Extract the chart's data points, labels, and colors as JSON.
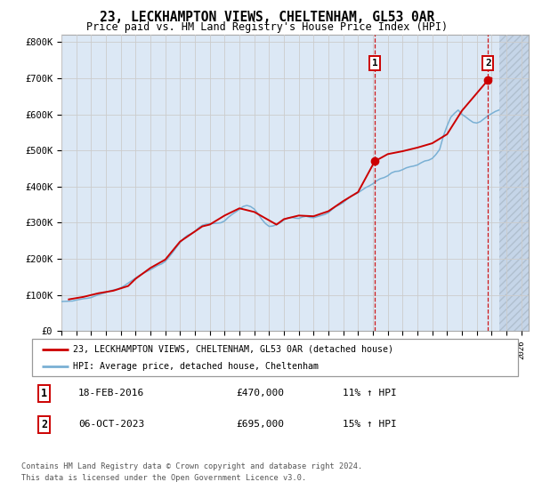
{
  "title": "23, LECKHAMPTON VIEWS, CHELTENHAM, GL53 0AR",
  "subtitle": "Price paid vs. HM Land Registry's House Price Index (HPI)",
  "ylabel_ticks": [
    "£0",
    "£100K",
    "£200K",
    "£300K",
    "£400K",
    "£500K",
    "£600K",
    "£700K",
    "£800K"
  ],
  "ytick_values": [
    0,
    100000,
    200000,
    300000,
    400000,
    500000,
    600000,
    700000,
    800000
  ],
  "ylim": [
    0,
    820000
  ],
  "xlim_start": 1995.0,
  "xlim_end": 2026.5,
  "xticks": [
    1995,
    1996,
    1997,
    1998,
    1999,
    2000,
    2001,
    2002,
    2003,
    2004,
    2005,
    2006,
    2007,
    2008,
    2009,
    2010,
    2011,
    2012,
    2013,
    2014,
    2015,
    2016,
    2017,
    2018,
    2019,
    2020,
    2021,
    2022,
    2023,
    2024,
    2025,
    2026
  ],
  "grid_color": "#cccccc",
  "background_color": "#dce8f5",
  "hatch_region_color": "#c5d5e8",
  "red_line_color": "#cc0000",
  "blue_line_color": "#7ab0d4",
  "dashed_line_color": "#cc0000",
  "legend_label_red": "23, LECKHAMPTON VIEWS, CHELTENHAM, GL53 0AR (detached house)",
  "legend_label_blue": "HPI: Average price, detached house, Cheltenham",
  "marker1_x": 2016.12,
  "marker1_y": 470000,
  "marker1_label": "1",
  "marker1_date": "18-FEB-2016",
  "marker1_price": "£470,000",
  "marker1_hpi": "11% ↑ HPI",
  "marker2_x": 2023.76,
  "marker2_y": 695000,
  "marker2_label": "2",
  "marker2_date": "06-OCT-2023",
  "marker2_price": "£695,000",
  "marker2_hpi": "15% ↑ HPI",
  "footer1": "Contains HM Land Registry data © Crown copyright and database right 2024.",
  "footer2": "This data is licensed under the Open Government Licence v3.0.",
  "hpi_years": [
    1995.0,
    1995.25,
    1995.5,
    1995.75,
    1996.0,
    1996.25,
    1996.5,
    1996.75,
    1997.0,
    1997.25,
    1997.5,
    1997.75,
    1998.0,
    1998.25,
    1998.5,
    1998.75,
    1999.0,
    1999.25,
    1999.5,
    1999.75,
    2000.0,
    2000.25,
    2000.5,
    2000.75,
    2001.0,
    2001.25,
    2001.5,
    2001.75,
    2002.0,
    2002.25,
    2002.5,
    2002.75,
    2003.0,
    2003.25,
    2003.5,
    2003.75,
    2004.0,
    2004.25,
    2004.5,
    2004.75,
    2005.0,
    2005.25,
    2005.5,
    2005.75,
    2006.0,
    2006.25,
    2006.5,
    2006.75,
    2007.0,
    2007.25,
    2007.5,
    2007.75,
    2008.0,
    2008.25,
    2008.5,
    2008.75,
    2009.0,
    2009.25,
    2009.5,
    2009.75,
    2010.0,
    2010.25,
    2010.5,
    2010.75,
    2011.0,
    2011.25,
    2011.5,
    2011.75,
    2012.0,
    2012.25,
    2012.5,
    2012.75,
    2013.0,
    2013.25,
    2013.5,
    2013.75,
    2014.0,
    2014.25,
    2014.5,
    2014.75,
    2015.0,
    2015.25,
    2015.5,
    2015.75,
    2016.0,
    2016.25,
    2016.5,
    2016.75,
    2017.0,
    2017.25,
    2017.5,
    2017.75,
    2018.0,
    2018.25,
    2018.5,
    2018.75,
    2019.0,
    2019.25,
    2019.5,
    2019.75,
    2020.0,
    2020.25,
    2020.5,
    2020.75,
    2021.0,
    2021.25,
    2021.5,
    2021.75,
    2022.0,
    2022.25,
    2022.5,
    2022.75,
    2023.0,
    2023.25,
    2023.5,
    2023.75,
    2024.0,
    2024.25,
    2024.5
  ],
  "hpi_values": [
    82000,
    82500,
    83000,
    83500,
    86000,
    88000,
    90000,
    91000,
    93000,
    97000,
    101000,
    104000,
    107000,
    111000,
    114000,
    116000,
    120000,
    126000,
    133000,
    140000,
    147000,
    154000,
    160000,
    165000,
    170000,
    176000,
    182000,
    186000,
    193000,
    205000,
    218000,
    232000,
    245000,
    257000,
    265000,
    270000,
    276000,
    286000,
    293000,
    296000,
    297000,
    298000,
    299000,
    300000,
    305000,
    315000,
    323000,
    330000,
    337000,
    345000,
    348000,
    345000,
    338000,
    325000,
    310000,
    298000,
    290000,
    291000,
    295000,
    300000,
    308000,
    313000,
    315000,
    313000,
    312000,
    316000,
    318000,
    315000,
    314000,
    317000,
    320000,
    323000,
    328000,
    337000,
    345000,
    350000,
    356000,
    365000,
    373000,
    378000,
    383000,
    390000,
    397000,
    402000,
    408000,
    416000,
    422000,
    425000,
    430000,
    438000,
    442000,
    443000,
    447000,
    452000,
    455000,
    457000,
    460000,
    466000,
    471000,
    473000,
    478000,
    489000,
    503000,
    540000,
    568000,
    592000,
    603000,
    612000,
    600000,
    593000,
    585000,
    578000,
    576000,
    580000,
    588000,
    596000,
    602000,
    608000,
    612000
  ],
  "price_years": [
    1995.5,
    1996.5,
    1997.5,
    1998.5,
    1999.5,
    2000.0,
    2000.5,
    2001.0,
    2002.0,
    2003.0,
    2003.5,
    2004.5,
    2005.0,
    2006.0,
    2007.0,
    2008.0,
    2009.5,
    2010.0,
    2011.0,
    2012.0,
    2013.0,
    2014.0,
    2015.0,
    2016.12,
    2017.0,
    2018.0,
    2019.0,
    2020.0,
    2021.0,
    2022.0,
    2023.76,
    2024.0
  ],
  "price_values": [
    88000,
    95000,
    105000,
    112000,
    125000,
    145000,
    160000,
    175000,
    198000,
    248000,
    262000,
    290000,
    295000,
    320000,
    340000,
    330000,
    295000,
    310000,
    320000,
    318000,
    332000,
    360000,
    385000,
    470000,
    490000,
    498000,
    508000,
    520000,
    545000,
    610000,
    695000,
    700000
  ]
}
